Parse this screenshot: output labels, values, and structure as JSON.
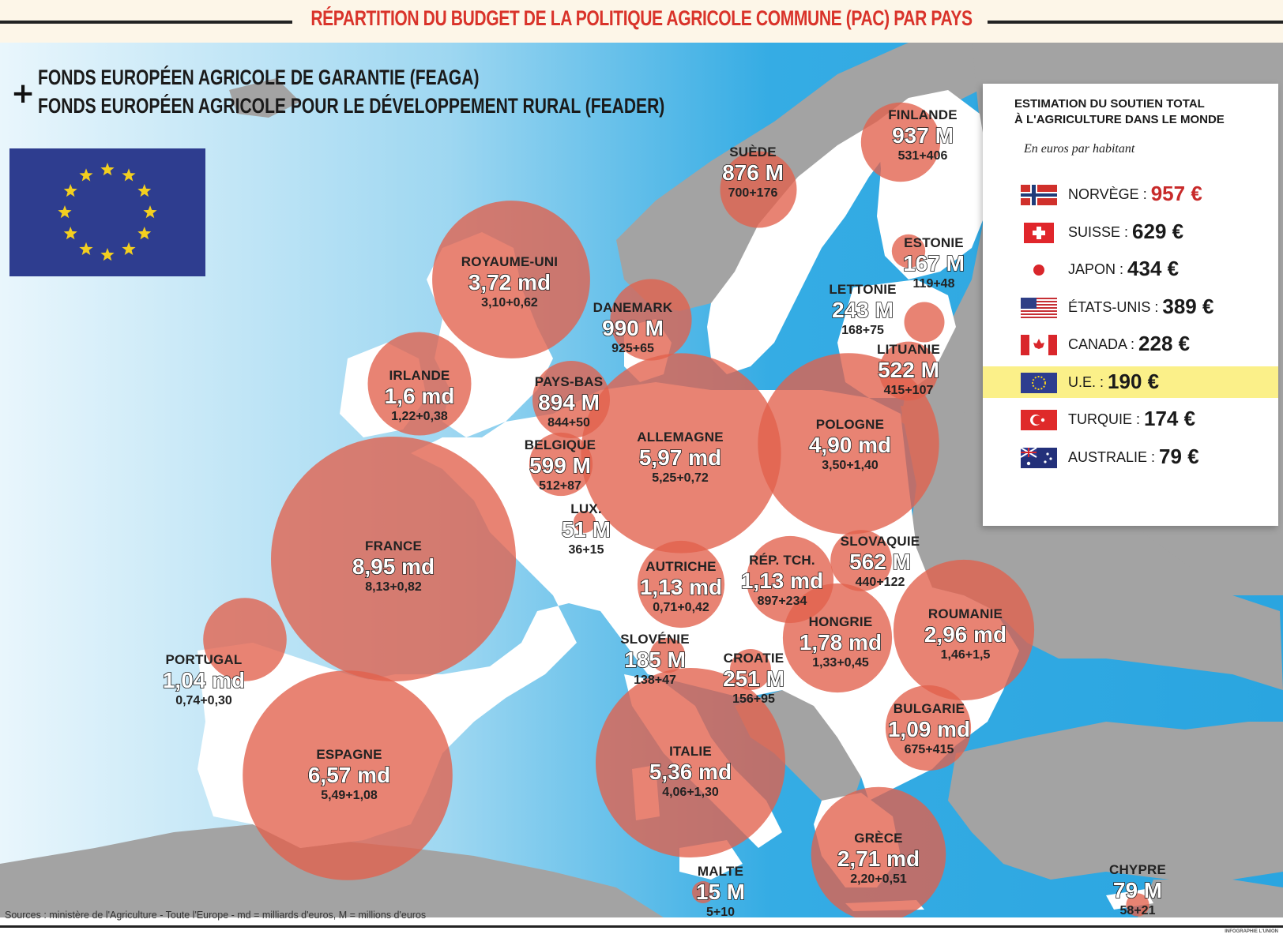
{
  "title": "RÉPARTITION DU BUDGET DE LA POLITIQUE AGRICOLE COMMUNE (PAC) PAR PAYS",
  "funds": {
    "symbol": "+",
    "line1": "FONDS EUROPÉEN AGRICOLE DE GARANTIE (FEAGA)",
    "line2": "FONDS EUROPÉEN AGRICOLE POUR LE DÉVELOPPEMENT RURAL (FEADER)"
  },
  "countries": [
    {
      "name": "FINLANDE",
      "amount": "937 M",
      "split": "531+406",
      "amount_eur_m": 937
    },
    {
      "name": "SUÈDE",
      "amount": "876 M",
      "split": "700+176",
      "amount_eur_m": 876
    },
    {
      "name": "ESTONIE",
      "amount": "167 M",
      "split": "119+48",
      "amount_eur_m": 167
    },
    {
      "name": "LETTONIE",
      "amount": "243 M",
      "split": "168+75",
      "amount_eur_m": 243
    },
    {
      "name": "LITUANIE",
      "amount": "522 M",
      "split": "415+107",
      "amount_eur_m": 522
    },
    {
      "name": "ROYAUME-UNI",
      "amount": "3,72 md",
      "split": "3,10+0,62",
      "amount_eur_m": 3720
    },
    {
      "name": "DANEMARK",
      "amount": "990 M",
      "split": "925+65",
      "amount_eur_m": 990
    },
    {
      "name": "IRLANDE",
      "amount": "1,6 md",
      "split": "1,22+0,38",
      "amount_eur_m": 1600
    },
    {
      "name": "PAYS-BAS",
      "amount": "894 M",
      "split": "844+50",
      "amount_eur_m": 894
    },
    {
      "name": "BELGIQUE",
      "amount": "599 M",
      "split": "512+87",
      "amount_eur_m": 599
    },
    {
      "name": "ALLEMAGNE",
      "amount": "5,97 md",
      "split": "5,25+0,72",
      "amount_eur_m": 5970
    },
    {
      "name": "POLOGNE",
      "amount": "4,90 md",
      "split": "3,50+1,40",
      "amount_eur_m": 4900
    },
    {
      "name": "LUX.",
      "amount": "51 M",
      "split": "36+15",
      "amount_eur_m": 51
    },
    {
      "name": "FRANCE",
      "amount": "8,95 md",
      "split": "8,13+0,82",
      "amount_eur_m": 8950
    },
    {
      "name": "SLOVAQUIE",
      "amount": "562 M",
      "split": "440+122",
      "amount_eur_m": 562
    },
    {
      "name": "AUTRICHE",
      "amount": "1,13 md",
      "split": "0,71+0,42",
      "amount_eur_m": 1130
    },
    {
      "name": "RÉP. TCH.",
      "amount": "1,13 md",
      "split": "897+234",
      "amount_eur_m": 1130
    },
    {
      "name": "HONGRIE",
      "amount": "1,78 md",
      "split": "1,33+0,45",
      "amount_eur_m": 1780
    },
    {
      "name": "ROUMANIE",
      "amount": "2,96 md",
      "split": "1,46+1,5",
      "amount_eur_m": 2960
    },
    {
      "name": "SLOVÉNIE",
      "amount": "185 M",
      "split": "138+47",
      "amount_eur_m": 185
    },
    {
      "name": "CROATIE",
      "amount": "251 M",
      "split": "156+95",
      "amount_eur_m": 251
    },
    {
      "name": "PORTUGAL",
      "amount": "1,04 md",
      "split": "0,74+0,30",
      "amount_eur_m": 1040
    },
    {
      "name": "BULGARIE",
      "amount": "1,09 md",
      "split": "675+415",
      "amount_eur_m": 1090
    },
    {
      "name": "ESPAGNE",
      "amount": "6,57 md",
      "split": "5,49+1,08",
      "amount_eur_m": 6570
    },
    {
      "name": "ITALIE",
      "amount": "5,36 md",
      "split": "4,06+1,30",
      "amount_eur_m": 5360
    },
    {
      "name": "GRÈCE",
      "amount": "2,71 md",
      "split": "2,20+0,51",
      "amount_eur_m": 2710
    },
    {
      "name": "MALTE",
      "amount": "15 M",
      "split": "5+10",
      "amount_eur_m": 15
    },
    {
      "name": "CHYPRE",
      "amount": "79 M",
      "split": "58+21",
      "amount_eur_m": 79
    }
  ],
  "support_panel": {
    "title_line1": "ESTIMATION DU SOUTIEN TOTAL",
    "title_line2": "À L'AGRICULTURE DANS LE MONDE",
    "subtitle": "En euros par habitant",
    "rows": [
      {
        "country": "NORVÈGE",
        "value": "957 €",
        "icon": "norway-flag-icon",
        "emphasis": "red"
      },
      {
        "country": "SUISSE",
        "value": "629 €",
        "icon": "switzerland-flag-icon"
      },
      {
        "country": "JAPON",
        "value": "434 €",
        "icon": "japan-flag-icon"
      },
      {
        "country": "ÉTATS-UNIS",
        "value": "389 €",
        "icon": "usa-flag-icon"
      },
      {
        "country": "CANADA",
        "value": "228 €",
        "icon": "canada-flag-icon"
      },
      {
        "country": "U.E.",
        "value": "190 €",
        "icon": "eu-flag-icon",
        "highlight": true
      },
      {
        "country": "TURQUIE",
        "value": "174 €",
        "icon": "turkey-flag-icon"
      },
      {
        "country": "AUSTRALIE",
        "value": "79 €",
        "icon": "australia-flag-icon"
      }
    ]
  },
  "sources": "Sources : ministère de l'Agriculture - Toute l'Europe - md = milliards d'euros, M = millions d'euros",
  "credit": "INFOGRAPHIE L'UNION",
  "colors": {
    "sea_light": "#d6eef9",
    "sea": "#39aee3",
    "land_eu": "#ffffff",
    "land_non_eu": "#a3a3a3",
    "bubble": "#e86a56",
    "title_red": "#d9332a",
    "highlight": "#fbf089",
    "eu_blue": "#2e3d8f",
    "eu_star": "#f3cf1f"
  }
}
